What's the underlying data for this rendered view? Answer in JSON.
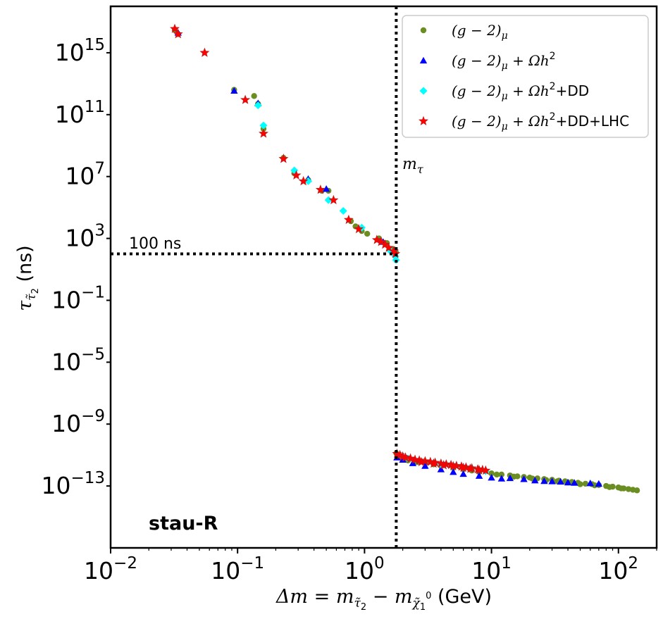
{
  "chart_data": {
    "type": "scatter",
    "panel_label": "stau-R",
    "xlabel": "Δm = mτ̃2 − mχ̃10 (GeV)",
    "xlabel_parts": {
      "lhs": "Δm = m",
      "sub1": "τ̃",
      "sub1b": "2",
      "minus": " − m",
      "sub2": "χ̃",
      "sub2b": "1",
      "sup2": "0",
      "unit": " (GeV)"
    },
    "ylabel": "ττ̃2 (ns)",
    "ylabel_parts": {
      "tau": "τ",
      "sub": "τ̃",
      "subb": "2",
      "unit": " (ns)"
    },
    "xscale": "log",
    "yscale": "log",
    "xlim": [
      0.01,
      200
    ],
    "ylim": [
      1e-17,
      1e+18
    ],
    "x_ticks": [
      {
        "base": "10",
        "exp": "−2",
        "value": 0.01
      },
      {
        "base": "10",
        "exp": "−1",
        "value": 0.1
      },
      {
        "base": "10",
        "exp": "0",
        "value": 1
      },
      {
        "base": "10",
        "exp": "1",
        "value": 10
      },
      {
        "base": "10",
        "exp": "2",
        "value": 100
      }
    ],
    "y_ticks": [
      {
        "base": "10",
        "exp": "−13",
        "value": 1e-13
      },
      {
        "base": "10",
        "exp": "−9",
        "value": 1e-09
      },
      {
        "base": "10",
        "exp": "−5",
        "value": 1e-05
      },
      {
        "base": "10",
        "exp": "−1",
        "value": 0.1
      },
      {
        "base": "10",
        "exp": "3",
        "value": 1000
      },
      {
        "base": "10",
        "exp": "7",
        "value": 10000000.0
      },
      {
        "base": "10",
        "exp": "11",
        "value": 100000000000.0
      },
      {
        "base": "10",
        "exp": "15",
        "value": 1000000000000000.0
      }
    ],
    "reference_lines": [
      {
        "orientation": "vertical",
        "x": 1.777,
        "label": "mτ",
        "label_parts": {
          "m": "m",
          "sub": "τ"
        }
      },
      {
        "orientation": "horizontal",
        "y": 100,
        "x_end": 1.777,
        "label": "100 ns"
      }
    ],
    "legend": {
      "position": "top-right",
      "entries": [
        {
          "series": "g2",
          "text": "(g − 2)μ",
          "parts": [
            "(g − 2)",
            "μ",
            "",
            ""
          ]
        },
        {
          "series": "g2_relic",
          "text": "(g − 2)μ + Ωh2",
          "parts": [
            "(g − 2)",
            "μ",
            " + Ωh",
            "2"
          ]
        },
        {
          "series": "g2_relic_dd",
          "text": "(g − 2)μ + Ωh2+DD",
          "parts": [
            "(g − 2)",
            "μ",
            " + Ωh",
            "2",
            "+DD"
          ]
        },
        {
          "series": "g2_relic_dd_lhc",
          "text": "(g − 2)μ + Ωh2+DD+LHC",
          "parts": [
            "(g − 2)",
            "μ",
            " + Ωh",
            "2",
            "+DD+LHC"
          ]
        }
      ]
    },
    "series": [
      {
        "id": "g2",
        "name": "(g − 2)μ",
        "color": "#6b8e23",
        "marker": "circle",
        "points": [
          [
            0.032,
            3e+16
          ],
          [
            0.034,
            1.6e+16
          ],
          [
            0.094,
            4000000000000.0
          ],
          [
            0.135,
            1600000000000.0
          ],
          [
            0.145,
            500000000000.0
          ],
          [
            0.16,
            12000000000.0
          ],
          [
            0.23,
            160000000.0
          ],
          [
            0.28,
            16000000.0
          ],
          [
            0.36,
            6000000.0
          ],
          [
            0.46,
            1200000.0
          ],
          [
            0.52,
            1200000.0
          ],
          [
            0.78,
            13000.0
          ],
          [
            0.85,
            6000.0
          ],
          [
            0.95,
            3000.0
          ],
          [
            1.05,
            2000.0
          ],
          [
            1.3,
            1000.0
          ],
          [
            1.5,
            500
          ],
          [
            1.7,
            200
          ],
          [
            1.76,
            140
          ],
          [
            1.78,
            1.3e-11
          ],
          [
            1.9,
            7e-12
          ],
          [
            2.2,
            4.5e-12
          ],
          [
            2.6,
            3.5e-12
          ],
          [
            3,
            3e-12
          ],
          [
            3.5,
            2.5e-12
          ],
          [
            4,
            2e-12
          ],
          [
            5,
            1.5e-12
          ],
          [
            6,
            1.2e-12
          ],
          [
            7,
            1e-12
          ],
          [
            8,
            8e-13
          ],
          [
            10,
            6.5e-13
          ],
          [
            12,
            5.5e-13
          ],
          [
            14,
            4.8e-13
          ],
          [
            16,
            4.2e-13
          ],
          [
            18,
            3.8e-13
          ],
          [
            20,
            3.5e-13
          ],
          [
            23,
            3.1e-13
          ],
          [
            26,
            2.8e-13
          ],
          [
            30,
            2.5e-13
          ],
          [
            34,
            2.2e-13
          ],
          [
            38,
            2e-13
          ],
          [
            43,
            1.8e-13
          ],
          [
            48,
            1.6e-13
          ],
          [
            55,
            1.4e-13
          ],
          [
            62,
            1.3e-13
          ],
          [
            70,
            1.15e-13
          ],
          [
            80,
            1e-13
          ],
          [
            90,
            9e-14
          ],
          [
            100,
            8e-14
          ],
          [
            110,
            7e-14
          ],
          [
            120,
            6.3e-14
          ],
          [
            130,
            5.7e-14
          ],
          [
            140,
            5.2e-14
          ],
          [
            11,
            5.5e-13
          ],
          [
            15,
            4e-13
          ],
          [
            21,
            3e-13
          ],
          [
            27,
            2.4e-13
          ],
          [
            33,
            2e-13
          ],
          [
            40,
            1.7e-13
          ],
          [
            50,
            1.3e-13
          ],
          [
            65,
            1.1e-13
          ],
          [
            85,
            8.5e-14
          ],
          [
            105,
            7e-14
          ]
        ]
      },
      {
        "id": "g2_relic",
        "name": "(g − 2)μ + Ωh2",
        "color": "#0000ff",
        "marker": "triangle",
        "points": [
          [
            0.034,
            2e+16
          ],
          [
            0.094,
            3500000000000.0
          ],
          [
            0.145,
            550000000000.0
          ],
          [
            0.36,
            7000000.0
          ],
          [
            0.5,
            1600000.0
          ],
          [
            1.4,
            600.0
          ],
          [
            1.72,
            150
          ],
          [
            1.8,
            7e-12
          ],
          [
            2,
            5e-12
          ],
          [
            2.4,
            3e-12
          ],
          [
            3,
            2e-12
          ],
          [
            4,
            1.2e-12
          ],
          [
            5,
            8e-13
          ],
          [
            6,
            6e-13
          ],
          [
            8,
            4.5e-13
          ],
          [
            10,
            3.5e-13
          ],
          [
            12,
            3e-13
          ],
          [
            14,
            3.2e-13
          ],
          [
            18,
            2.8e-13
          ],
          [
            22,
            2.3e-13
          ],
          [
            26,
            2.1e-13
          ],
          [
            30,
            2e-13
          ],
          [
            35,
            1.9e-13
          ],
          [
            40,
            1.7e-13
          ],
          [
            45,
            1.6e-13
          ],
          [
            60,
            1.5e-13
          ],
          [
            70,
            1.4e-13
          ]
        ]
      },
      {
        "id": "g2_relic_dd",
        "name": "(g − 2)μ + Ωh2+DD",
        "color": "#00ffff",
        "marker": "diamond",
        "points": [
          [
            0.145,
            400000000000.0
          ],
          [
            0.16,
            20000000000.0
          ],
          [
            0.28,
            25000000.0
          ],
          [
            0.36,
            5000000.0
          ],
          [
            0.52,
            300000.0
          ],
          [
            0.68,
            60000.0
          ],
          [
            0.95,
            5000.0
          ],
          [
            1.6,
            150
          ],
          [
            1.75,
            70
          ],
          [
            1.77,
            40
          ],
          [
            2.2,
            6e-12
          ],
          [
            4,
            2.5e-12
          ],
          [
            7,
            1.4e-12
          ],
          [
            9,
            9e-13
          ]
        ]
      },
      {
        "id": "g2_relic_dd_lhc",
        "name": "(g − 2)μ + Ωh2+DD+LHC",
        "color": "#ff0000",
        "marker": "star",
        "points": [
          [
            0.032,
            3.5e+16
          ],
          [
            0.034,
            1.6e+16
          ],
          [
            0.055,
            1000000000000000.0
          ],
          [
            0.115,
            900000000000.0
          ],
          [
            0.16,
            6000000000.0
          ],
          [
            0.23,
            140000000.0
          ],
          [
            0.29,
            12000000.0
          ],
          [
            0.33,
            5000000.0
          ],
          [
            0.45,
            1400000.0
          ],
          [
            0.57,
            300000.0
          ],
          [
            0.75,
            16000.0
          ],
          [
            0.9,
            4000.0
          ],
          [
            1.25,
            800
          ],
          [
            1.35,
            600
          ],
          [
            1.45,
            400
          ],
          [
            1.55,
            250
          ],
          [
            1.7,
            150
          ],
          [
            1.75,
            100
          ],
          [
            1.8,
            1.2e-11
          ],
          [
            1.9,
            1e-11
          ],
          [
            2,
            8e-12
          ],
          [
            2.1,
            7e-12
          ],
          [
            2.3,
            6e-12
          ],
          [
            2.5,
            5e-12
          ],
          [
            2.7,
            4.5e-12
          ],
          [
            3,
            4e-12
          ],
          [
            3.3,
            3.6e-12
          ],
          [
            3.6,
            3.2e-12
          ],
          [
            4,
            2.8e-12
          ],
          [
            4.4,
            2.5e-12
          ],
          [
            4.8,
            2.3e-12
          ],
          [
            5.3,
            2e-12
          ],
          [
            5.8,
            1.8e-12
          ],
          [
            6.3,
            1.6e-12
          ],
          [
            7,
            1.4e-12
          ],
          [
            7.8,
            1.2e-12
          ],
          [
            8.5,
            1.1e-12
          ],
          [
            9,
            1e-12
          ],
          [
            2.8,
            3.5e-12
          ],
          [
            3.5,
            2.8e-12
          ],
          [
            4.2,
            2.2e-12
          ],
          [
            5,
            1.9e-12
          ],
          [
            6,
            1.5e-12
          ],
          [
            6.8,
            1.3e-12
          ],
          [
            8,
            1.05e-12
          ]
        ]
      }
    ]
  }
}
